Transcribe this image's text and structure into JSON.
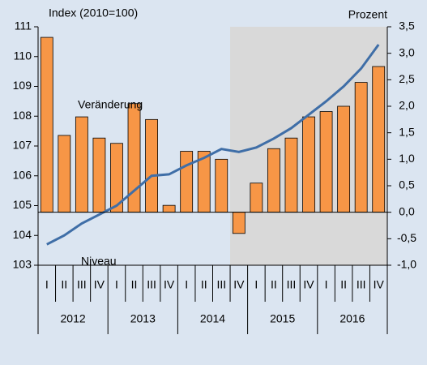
{
  "chart_data": {
    "type": "bar_line",
    "y_axis_label": "Index (2010=100)",
    "y2_axis_label": "Prozent",
    "annotations": [
      "Veränderung",
      "Niveau"
    ],
    "categories": [
      "I",
      "II",
      "III",
      "IV",
      "I",
      "II",
      "III",
      "IV",
      "I",
      "II",
      "III",
      "IV",
      "I",
      "II",
      "III",
      "IV",
      "I",
      "II",
      "III",
      "IV"
    ],
    "year_groups": [
      "2012",
      "2013",
      "2014",
      "2015",
      "2016"
    ],
    "shade_from_index": 11,
    "series": [
      {
        "name": "Veränderung",
        "kind": "bar",
        "axis": "y2",
        "color": "#f79646",
        "values": [
          3.3,
          1.45,
          1.8,
          1.4,
          1.3,
          2.05,
          1.75,
          0.13,
          1.15,
          1.15,
          1.0,
          -0.4,
          0.55,
          1.2,
          1.4,
          1.8,
          1.9,
          2.0,
          2.45,
          2.75
        ]
      },
      {
        "name": "Niveau",
        "kind": "line",
        "color": "#3f6ea7",
        "values": [
          103.7,
          104.0,
          104.4,
          104.7,
          105.0,
          105.5,
          106.0,
          106.05,
          106.35,
          106.6,
          106.9,
          106.8,
          106.95,
          107.25,
          107.6,
          108.05,
          108.5,
          109.0,
          109.6,
          110.4
        ]
      }
    ],
    "ylim": [
      103,
      111
    ],
    "yticks": [
      103,
      104,
      105,
      106,
      107,
      108,
      109,
      110,
      111
    ],
    "y2lim": [
      -1.0,
      3.5
    ],
    "y2ticks": [
      {
        "value": -1.0,
        "label": "-1,0"
      },
      {
        "value": -0.5,
        "label": "-0,5"
      },
      {
        "value": 0.0,
        "label": "0,0"
      },
      {
        "value": 0.5,
        "label": "0,5"
      },
      {
        "value": 1.0,
        "label": "1,0"
      },
      {
        "value": 1.5,
        "label": "1,5"
      },
      {
        "value": 2.0,
        "label": "2,0"
      },
      {
        "value": 2.5,
        "label": "2,5"
      },
      {
        "value": 3.0,
        "label": "3,0"
      },
      {
        "value": 3.5,
        "label": "3,5"
      }
    ]
  }
}
